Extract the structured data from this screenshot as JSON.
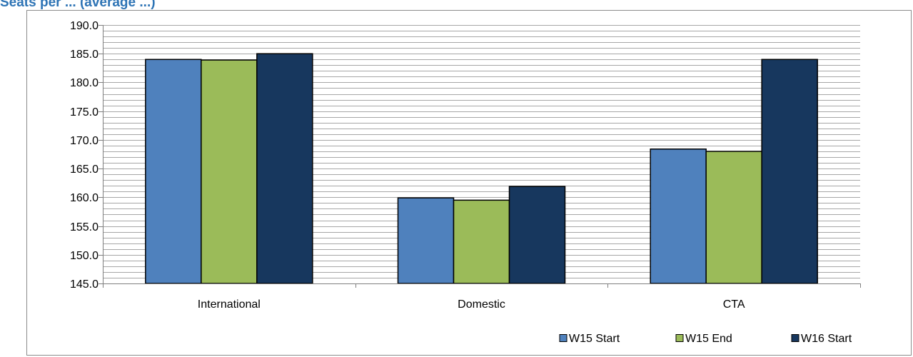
{
  "chart_data": {
    "type": "bar",
    "title": "Seats per ... (average ...)",
    "xlabel": "",
    "ylabel": "",
    "categories": [
      "International",
      "Domestic",
      "CTA"
    ],
    "series": [
      {
        "name": "W15 Start",
        "color": "#4f81bd",
        "values": [
          184.0,
          159.9,
          168.4
        ]
      },
      {
        "name": "W15 End",
        "color": "#9bbb59",
        "values": [
          183.9,
          159.5,
          168.0
        ]
      },
      {
        "name": "W16 Start",
        "color": "#17375e",
        "values": [
          185.0,
          161.9,
          184.0
        ]
      }
    ],
    "ylim": [
      145.0,
      190.0
    ],
    "yticks": [
      "145.0",
      "150.0",
      "155.0",
      "160.0",
      "165.0",
      "170.0",
      "175.0",
      "180.0",
      "185.0",
      "190.0"
    ],
    "minor_gridlines": true,
    "legend_position": "bottom-right",
    "gridline_color": "#a6a6a6",
    "axis_color": "#7f7f7f"
  }
}
